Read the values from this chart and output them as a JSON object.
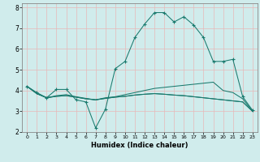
{
  "title": "",
  "xlabel": "Humidex (Indice chaleur)",
  "ylabel": "",
  "bg_color": "#d0ecec",
  "grid_color": "#e8b8b8",
  "line_color": "#1a7a6e",
  "xlim": [
    -0.5,
    23.5
  ],
  "ylim": [
    2,
    8.2
  ],
  "xticks": [
    0,
    1,
    2,
    3,
    4,
    5,
    6,
    7,
    8,
    9,
    10,
    11,
    12,
    13,
    14,
    15,
    16,
    17,
    18,
    19,
    20,
    21,
    22,
    23
  ],
  "yticks": [
    2,
    3,
    4,
    5,
    6,
    7,
    8
  ],
  "lines": [
    {
      "x": [
        0,
        1,
        2,
        3,
        4,
        5,
        6,
        7,
        8,
        9,
        10,
        11,
        12,
        13,
        14,
        15,
        16,
        17,
        18,
        19,
        20,
        21,
        22,
        23
      ],
      "y": [
        4.2,
        3.9,
        3.65,
        4.05,
        4.05,
        3.55,
        3.45,
        2.2,
        3.1,
        5.05,
        5.4,
        6.55,
        7.2,
        7.75,
        7.75,
        7.3,
        7.55,
        7.15,
        6.55,
        5.4,
        5.4,
        5.5,
        3.7,
        3.05
      ],
      "marker": "+"
    },
    {
      "x": [
        0,
        1,
        2,
        3,
        4,
        5,
        6,
        7,
        8,
        9,
        10,
        11,
        12,
        13,
        14,
        15,
        16,
        17,
        18,
        19,
        20,
        21,
        22,
        23
      ],
      "y": [
        4.2,
        3.85,
        3.65,
        3.75,
        3.8,
        3.7,
        3.62,
        3.55,
        3.65,
        3.7,
        3.8,
        3.9,
        4.0,
        4.1,
        4.15,
        4.2,
        4.25,
        4.3,
        4.35,
        4.4,
        4.0,
        3.9,
        3.6,
        3.0
      ],
      "marker": null
    },
    {
      "x": [
        0,
        1,
        2,
        3,
        4,
        5,
        6,
        7,
        8,
        9,
        10,
        11,
        12,
        13,
        14,
        15,
        16,
        17,
        18,
        19,
        20,
        21,
        22,
        23
      ],
      "y": [
        4.2,
        3.85,
        3.65,
        3.72,
        3.75,
        3.68,
        3.6,
        3.55,
        3.62,
        3.68,
        3.72,
        3.78,
        3.82,
        3.85,
        3.82,
        3.78,
        3.75,
        3.7,
        3.65,
        3.6,
        3.55,
        3.5,
        3.45,
        3.0
      ],
      "marker": null
    },
    {
      "x": [
        0,
        1,
        2,
        3,
        4,
        5,
        6,
        7,
        8,
        9,
        10,
        11,
        12,
        13,
        14,
        15,
        16,
        17,
        18,
        19,
        20,
        21,
        22,
        23
      ],
      "y": [
        4.2,
        3.85,
        3.65,
        3.72,
        3.75,
        3.68,
        3.6,
        3.55,
        3.62,
        3.68,
        3.72,
        3.78,
        3.82,
        3.85,
        3.82,
        3.78,
        3.75,
        3.7,
        3.65,
        3.6,
        3.55,
        3.5,
        3.45,
        3.0
      ],
      "marker": null
    }
  ]
}
